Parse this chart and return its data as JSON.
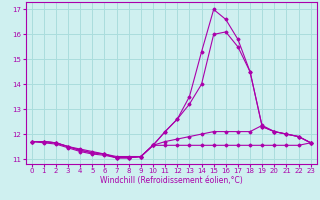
{
  "xlabel": "Windchill (Refroidissement éolien,°C)",
  "xlim": [
    -0.5,
    23.5
  ],
  "ylim": [
    10.8,
    17.3
  ],
  "yticks": [
    11,
    12,
    13,
    14,
    15,
    16,
    17
  ],
  "xticks": [
    0,
    1,
    2,
    3,
    4,
    5,
    6,
    7,
    8,
    9,
    10,
    11,
    12,
    13,
    14,
    15,
    16,
    17,
    18,
    19,
    20,
    21,
    22,
    23
  ],
  "bg_color": "#cff0f0",
  "grid_color": "#aadddd",
  "line_color": "#aa00aa",
  "lines": [
    {
      "x": [
        0,
        1,
        2,
        3,
        4,
        5,
        6,
        7,
        8,
        9,
        10,
        11,
        12,
        13,
        14,
        15,
        16,
        17,
        18,
        19,
        20,
        21,
        22,
        23
      ],
      "y": [
        11.7,
        11.7,
        11.65,
        11.5,
        11.4,
        11.3,
        11.2,
        11.1,
        11.1,
        11.1,
        11.55,
        11.55,
        11.55,
        11.55,
        11.55,
        11.55,
        11.55,
        11.55,
        11.55,
        11.55,
        11.55,
        11.55,
        11.55,
        11.65
      ]
    },
    {
      "x": [
        0,
        1,
        2,
        3,
        4,
        5,
        6,
        7,
        8,
        9,
        10,
        11,
        12,
        13,
        14,
        15,
        16,
        17,
        18,
        19,
        20,
        21,
        22,
        23
      ],
      "y": [
        11.7,
        11.65,
        11.6,
        11.45,
        11.3,
        11.2,
        11.15,
        11.05,
        11.05,
        11.1,
        11.55,
        11.7,
        11.8,
        11.9,
        12.0,
        12.1,
        12.1,
        12.1,
        12.1,
        12.35,
        12.1,
        12.0,
        11.9,
        11.65
      ]
    },
    {
      "x": [
        0,
        1,
        2,
        3,
        4,
        5,
        6,
        7,
        8,
        9,
        10,
        11,
        12,
        13,
        14,
        15,
        16,
        17,
        18,
        19,
        20,
        21,
        22,
        23
      ],
      "y": [
        11.7,
        11.7,
        11.65,
        11.5,
        11.35,
        11.25,
        11.2,
        11.05,
        11.05,
        11.1,
        11.55,
        12.1,
        12.6,
        13.2,
        14.0,
        16.0,
        16.1,
        15.5,
        14.5,
        12.3,
        12.1,
        12.0,
        11.9,
        11.65
      ]
    },
    {
      "x": [
        0,
        1,
        2,
        3,
        4,
        5,
        6,
        7,
        8,
        9,
        10,
        11,
        12,
        13,
        14,
        15,
        16,
        17,
        18,
        19,
        20,
        21,
        22,
        23
      ],
      "y": [
        11.7,
        11.7,
        11.65,
        11.5,
        11.35,
        11.25,
        11.2,
        11.05,
        11.05,
        11.1,
        11.55,
        12.1,
        12.6,
        13.5,
        15.3,
        17.0,
        16.6,
        15.8,
        14.5,
        12.3,
        12.1,
        12.0,
        11.9,
        11.65
      ]
    }
  ]
}
